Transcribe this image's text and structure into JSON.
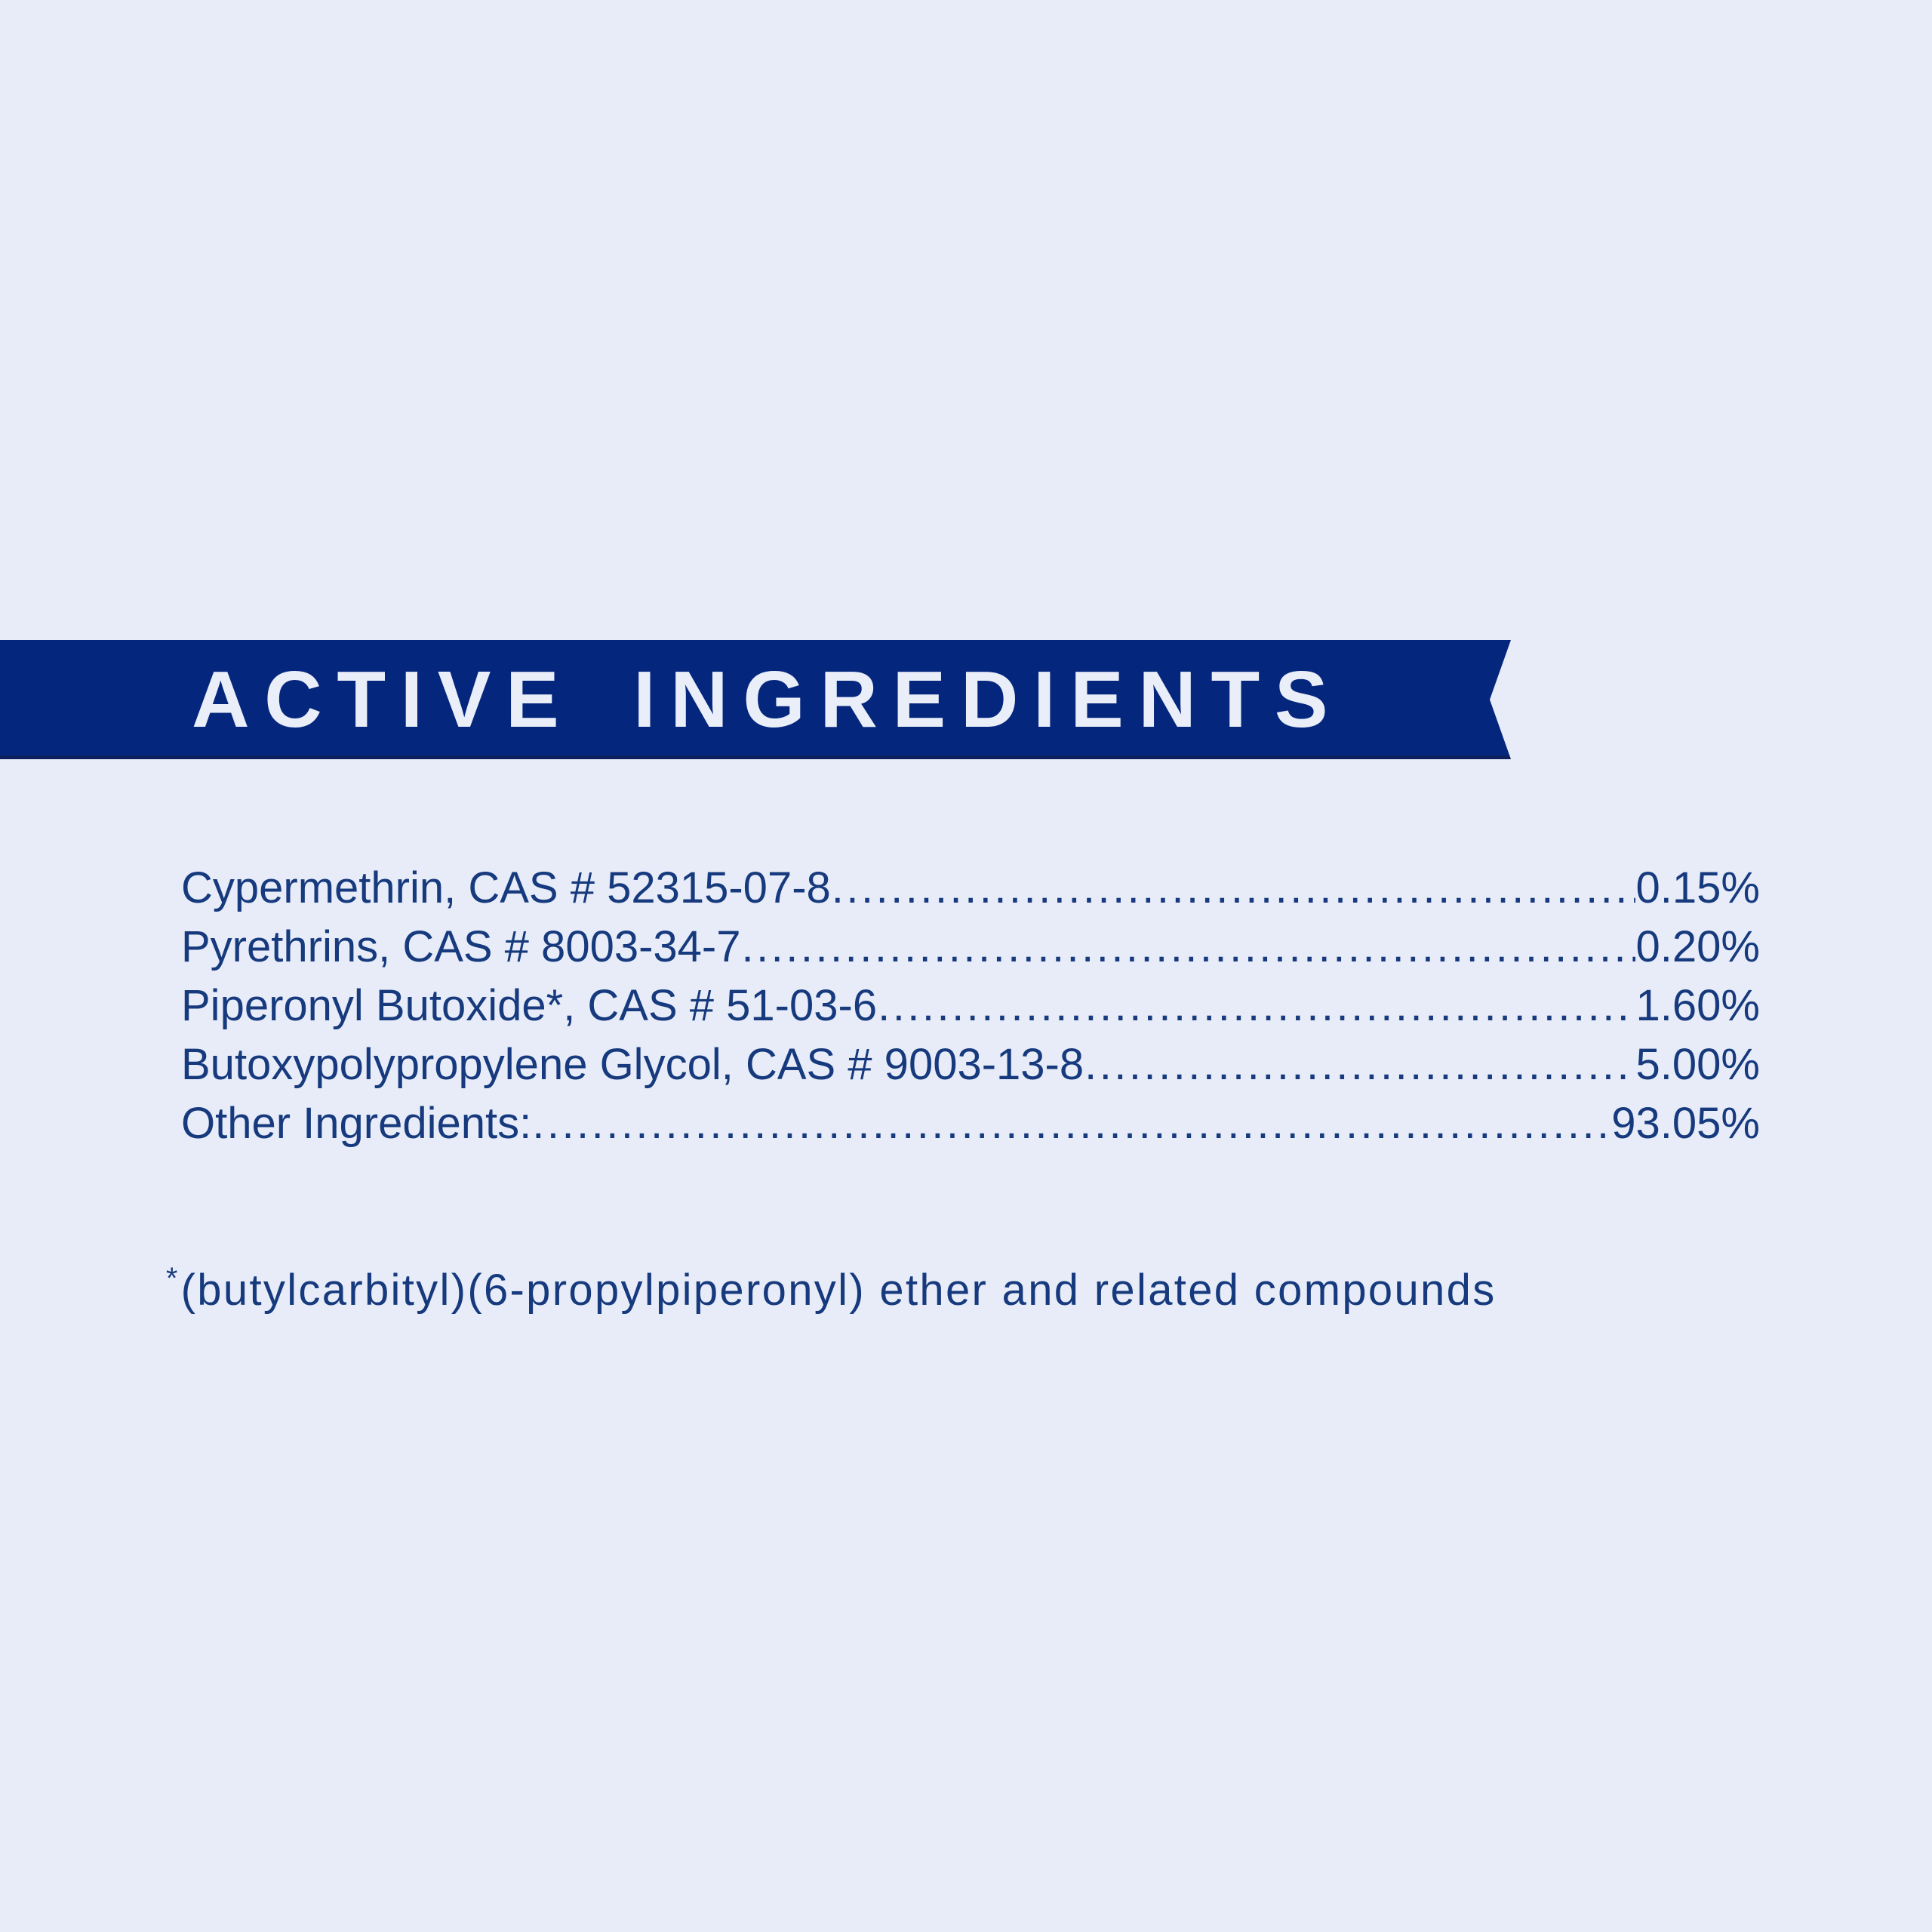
{
  "page": {
    "background": "#e7ecf8"
  },
  "banner": {
    "title": "ACTIVE INGREDIENTS",
    "background": "#05267d",
    "text_color": "#e9eef9"
  },
  "ingredients": {
    "text_color": "#163a7d",
    "rows": [
      {
        "name": "Cypermethrin, CAS # 52315-07-8",
        "value": "0.15%"
      },
      {
        "name": "Pyrethrins, CAS # 8003-34-7",
        "value": "0.20%"
      },
      {
        "name": "Piperonyl Butoxide*, CAS # 51-03-6",
        "value": "1.60%"
      },
      {
        "name": "Butoxypolypropylene Glycol, CAS # 9003-13-8",
        "value": "5.00%"
      },
      {
        "name": "Other Ingredients:",
        "value": "93.05%"
      }
    ]
  },
  "footnote": {
    "marker": "*",
    "text": "(butylcarbityl)(6-propylpiperonyl) ether and related compounds"
  }
}
